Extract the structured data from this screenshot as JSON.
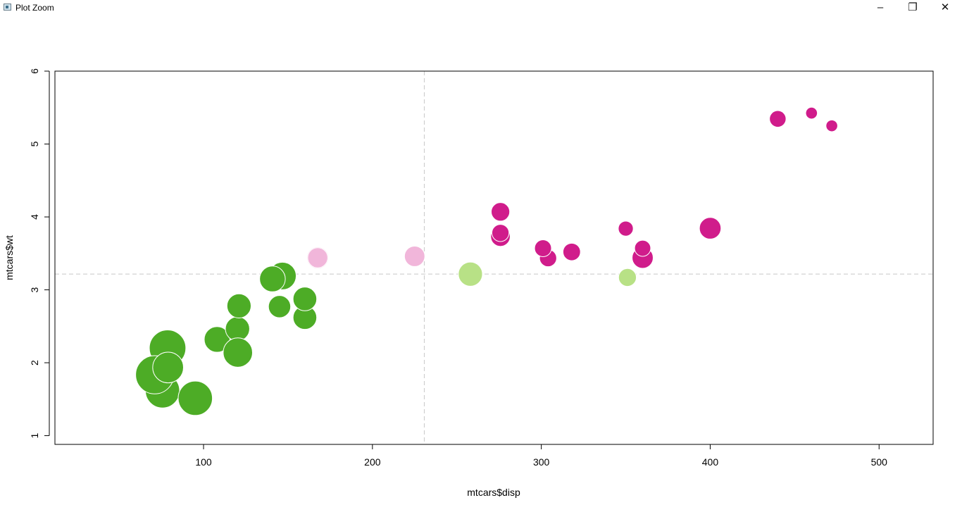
{
  "window": {
    "title": "Plot Zoom",
    "minimize_glyph": "–",
    "restore_glyph": "❐",
    "close_glyph": "✕"
  },
  "chart_data": {
    "type": "scatter",
    "title": "",
    "xlabel": "mtcars$disp",
    "ylabel": "mtcars$wt",
    "xlim": [
      12,
      532
    ],
    "ylim": [
      0.88,
      6.0
    ],
    "x_ticks": [
      100,
      200,
      300,
      400,
      500
    ],
    "y_ticks": [
      1,
      2,
      3,
      4,
      5,
      6
    ],
    "grid": false,
    "reference_lines": {
      "vertical_x": 230.7,
      "horizontal_y": 3.217,
      "style": "dashed",
      "color": "#c8c8c8"
    },
    "colors": {
      "dark_green": "#4dac26",
      "light_green": "#b8e186",
      "light_pink": "#f1b6da",
      "magenta": "#d01c8b"
    },
    "points": [
      {
        "x": 160,
        "y": 2.62,
        "size": 2.1,
        "color": "#4dac26"
      },
      {
        "x": 160,
        "y": 2.875,
        "size": 2.1,
        "color": "#4dac26"
      },
      {
        "x": 108,
        "y": 2.32,
        "size": 2.28,
        "color": "#4dac26"
      },
      {
        "x": 258,
        "y": 3.215,
        "size": 2.14,
        "color": "#b8e186"
      },
      {
        "x": 360,
        "y": 3.44,
        "size": 1.87,
        "color": "#d01c8b"
      },
      {
        "x": 225,
        "y": 3.46,
        "size": 1.81,
        "color": "#f1b6da"
      },
      {
        "x": 360,
        "y": 3.57,
        "size": 1.43,
        "color": "#d01c8b"
      },
      {
        "x": 146.7,
        "y": 3.19,
        "size": 2.44,
        "color": "#4dac26"
      },
      {
        "x": 140.8,
        "y": 3.15,
        "size": 2.28,
        "color": "#4dac26"
      },
      {
        "x": 167.6,
        "y": 3.44,
        "size": 1.92,
        "color": "#f1b6da"
      },
      {
        "x": 167.6,
        "y": 3.44,
        "size": 1.78,
        "color": "#f1b6da"
      },
      {
        "x": 275.8,
        "y": 4.07,
        "size": 1.64,
        "color": "#d01c8b"
      },
      {
        "x": 275.8,
        "y": 3.73,
        "size": 1.73,
        "color": "#d01c8b"
      },
      {
        "x": 275.8,
        "y": 3.78,
        "size": 1.52,
        "color": "#d01c8b"
      },
      {
        "x": 472,
        "y": 5.25,
        "size": 1.04,
        "color": "#d01c8b"
      },
      {
        "x": 460,
        "y": 5.424,
        "size": 1.04,
        "color": "#d01c8b"
      },
      {
        "x": 440,
        "y": 5.345,
        "size": 1.47,
        "color": "#d01c8b"
      },
      {
        "x": 78.7,
        "y": 2.2,
        "size": 3.24,
        "color": "#4dac26"
      },
      {
        "x": 75.7,
        "y": 1.615,
        "size": 3.04,
        "color": "#4dac26"
      },
      {
        "x": 71.1,
        "y": 1.835,
        "size": 3.39,
        "color": "#4dac26"
      },
      {
        "x": 120.1,
        "y": 2.465,
        "size": 2.15,
        "color": "#4dac26"
      },
      {
        "x": 318,
        "y": 3.52,
        "size": 1.55,
        "color": "#d01c8b"
      },
      {
        "x": 304,
        "y": 3.435,
        "size": 1.52,
        "color": "#d01c8b"
      },
      {
        "x": 350,
        "y": 3.84,
        "size": 1.33,
        "color": "#d01c8b"
      },
      {
        "x": 400,
        "y": 3.845,
        "size": 1.92,
        "color": "#d01c8b"
      },
      {
        "x": 79,
        "y": 1.935,
        "size": 2.73,
        "color": "#4dac26"
      },
      {
        "x": 120.3,
        "y": 2.14,
        "size": 2.6,
        "color": "#4dac26"
      },
      {
        "x": 95.1,
        "y": 1.513,
        "size": 3.04,
        "color": "#4dac26"
      },
      {
        "x": 351,
        "y": 3.17,
        "size": 1.58,
        "color": "#b8e186"
      },
      {
        "x": 145,
        "y": 2.77,
        "size": 1.97,
        "color": "#4dac26"
      },
      {
        "x": 301,
        "y": 3.57,
        "size": 1.5,
        "color": "#d01c8b"
      },
      {
        "x": 121,
        "y": 2.78,
        "size": 2.14,
        "color": "#4dac26"
      }
    ]
  }
}
